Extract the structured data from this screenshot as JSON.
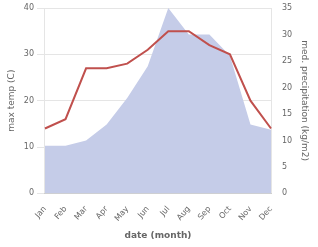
{
  "chart_data": {
    "type": "line",
    "categories": [
      "Jan",
      "Feb",
      "Mar",
      "Apr",
      "May",
      "Jun",
      "Jul",
      "Aug",
      "Sep",
      "Oct",
      "Nov",
      "Dec"
    ],
    "series": [
      {
        "type": "line",
        "color": "#c0504d",
        "values": [
          14,
          16,
          27,
          27,
          28,
          31,
          35,
          35,
          32,
          30,
          20,
          14
        ]
      },
      {
        "type": "area",
        "color": "#c5cce8",
        "axis": "y2",
        "values": [
          9,
          9,
          10,
          13,
          18,
          24,
          35,
          30,
          30,
          26,
          13,
          12
        ]
      }
    ],
    "xlabel": "date (month)",
    "ylabel": "max temp (C)",
    "y2label": "med. precipitation (kg/m2)",
    "ylim": [
      0,
      40
    ],
    "yticks": [
      0,
      10,
      20,
      30,
      40
    ],
    "y2lim": [
      0,
      35
    ],
    "y2ticks": [
      0,
      5,
      10,
      15,
      20,
      25,
      30,
      35
    ],
    "grid": true
  }
}
